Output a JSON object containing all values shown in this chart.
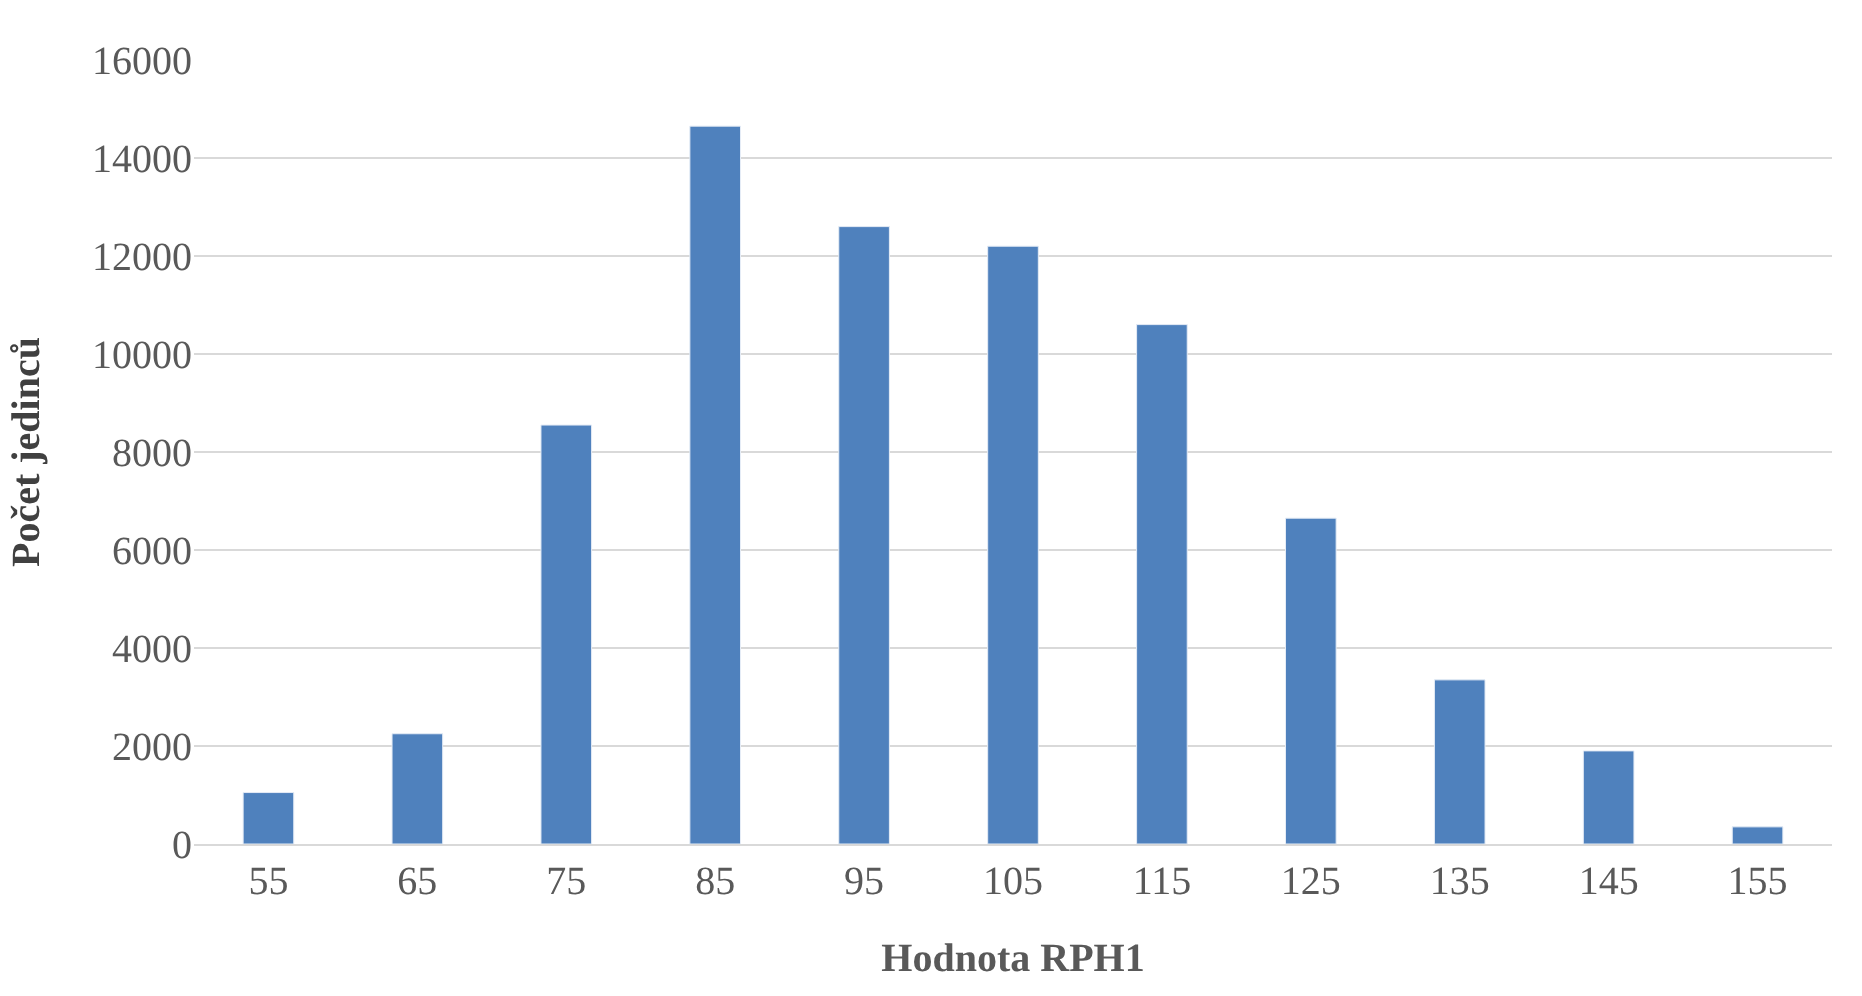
{
  "chart_data": {
    "type": "bar",
    "xlabel": "Hodnota RPH1",
    "ylabel": "Počet jedinců",
    "categories": [
      "55",
      "65",
      "75",
      "85",
      "95",
      "105",
      "115",
      "125",
      "135",
      "145",
      "155"
    ],
    "values": [
      1050,
      2250,
      8550,
      14650,
      12600,
      12200,
      10600,
      6650,
      3350,
      1900,
      350
    ],
    "color": "#4f81bd",
    "ylim": [
      0,
      16000
    ],
    "yticks": [
      0,
      2000,
      4000,
      6000,
      8000,
      10000,
      12000,
      14000,
      16000
    ],
    "grid": "y"
  }
}
